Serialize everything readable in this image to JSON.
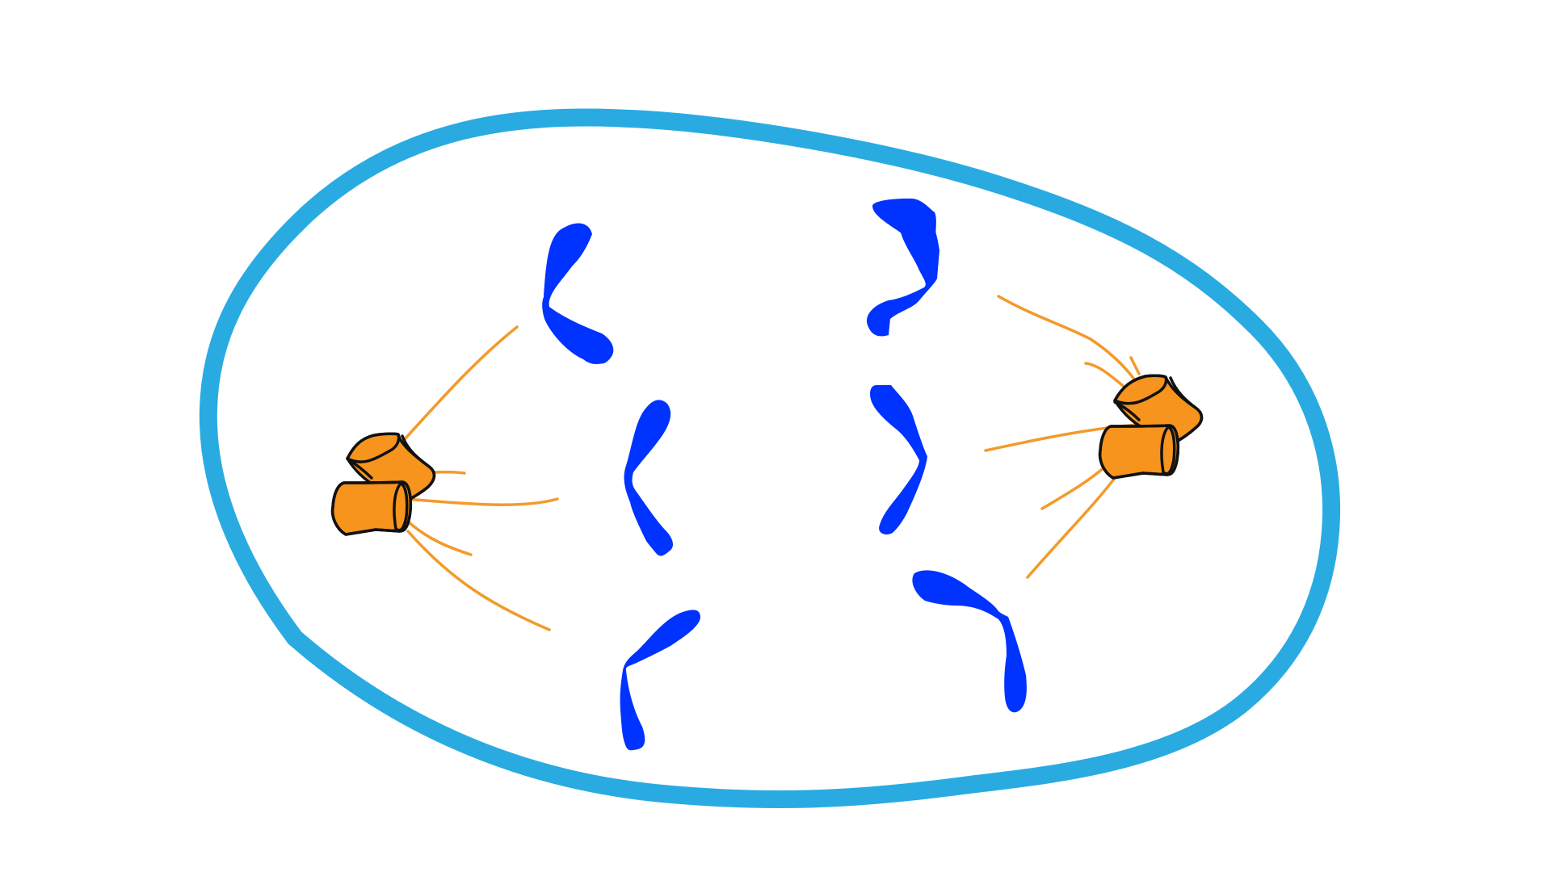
{
  "diagram": {
    "kind": "cell division (anaphase) illustration",
    "text_labels": [],
    "colors": {
      "background": "#ffffff",
      "cell_membrane": "#29abe2",
      "chromosomes": "#0033ff",
      "spindle_fibers": "#f39a2a",
      "centrioles": "#f7941d",
      "centriole_outline": "#111111"
    },
    "counts": {
      "chromosomes_left_group": 3,
      "chromosomes_right_group": 3,
      "centriole_pairs": 2
    }
  }
}
